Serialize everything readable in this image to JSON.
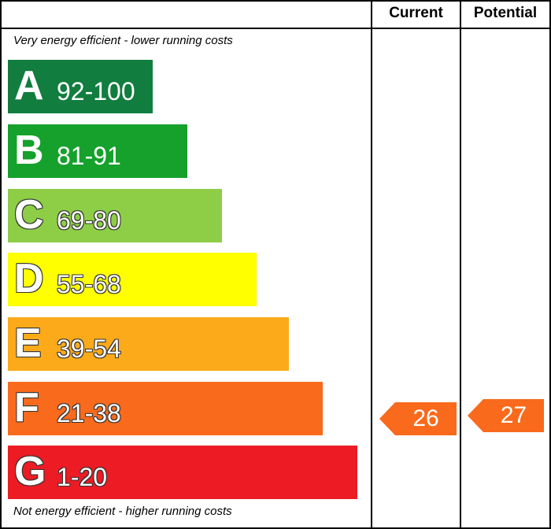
{
  "chart_data": {
    "type": "bar",
    "header": {
      "current_label": "Current",
      "potential_label": "Potential"
    },
    "top_note": "Very energy efficient - lower running costs",
    "bottom_note": "Not energy efficient - higher running costs",
    "bands": [
      {
        "letter": "A",
        "range": "92-100",
        "color": "#117d3e"
      },
      {
        "letter": "B",
        "range": "81-91",
        "color": "#15a12b"
      },
      {
        "letter": "C",
        "range": "69-80",
        "color": "#8dce46"
      },
      {
        "letter": "D",
        "range": "55-68",
        "color": "#ffff00"
      },
      {
        "letter": "E",
        "range": "39-54",
        "color": "#fcaa1a"
      },
      {
        "letter": "F",
        "range": "21-38",
        "color": "#f96a1c"
      },
      {
        "letter": "G",
        "range": "1-20",
        "color": "#ec1b24"
      }
    ],
    "current": {
      "value": 26,
      "band": "F",
      "color": "#f96a1c"
    },
    "potential": {
      "value": 27,
      "band": "F",
      "color": "#f96a1c"
    }
  }
}
